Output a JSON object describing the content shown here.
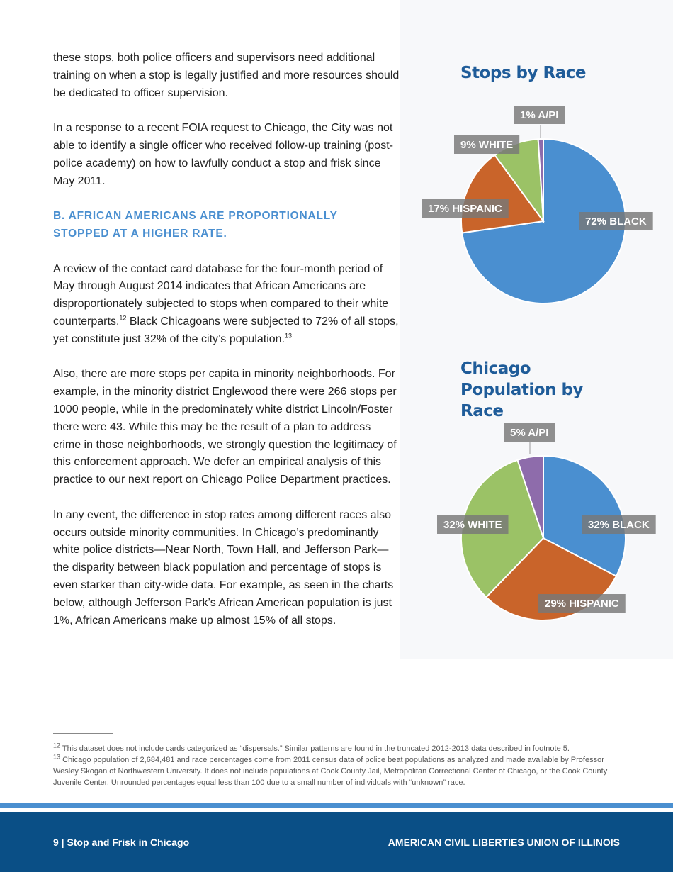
{
  "paragraphs": [
    {
      "text": "these stops, both police officers and supervisors need additional training on when a stop is legally justified and more resources should be dedicated to officer supervision."
    },
    {
      "text": "In a response to a recent FOIA request to Chicago, the City was not able to identify a single officer who received follow-up training (post-police academy) on how to lawfully conduct a stop and frisk since May 2011."
    }
  ],
  "heading": "B. AFRICAN AMERICANS ARE PROPORTIONALLY STOPPED AT A HIGHER RATE.",
  "review": {
    "text": "A review of the contact card database for the four-month period of May through August 2014 indicates that African Americans are disproportionately subjected to stops when compared to their white counterparts.",
    "note": "12",
    "text2": " Black Chicagoans were subjected to 72% of all stops, yet constitute just 32% of the city’s population.",
    "note2": "13"
  },
  "paragraphs2": [
    {
      "text": "Also, there are more stops per capita in minority neighborhoods.  For example, in the minority district Englewood there were 266 stops per 1000 people, while in the predominately white district Lincoln/Foster there were 43.  While this may be the result of a plan to address crime in those neighborhoods, we strongly question the legitimacy of this enforcement approach.  We defer an empirical analysis of this practice to our next report on Chicago Police Department practices."
    },
    {
      "text": "In any event, the difference in stop rates among different races also occurs outside minority communities.  In Chicago’s predominantly white police districts—Near North, Town Hall, and Jefferson Park—the disparity between black population and percentage of stops is even starker than city-wide data. For example, as seen in the charts below, although Jefferson Park’s African American population is just 1%, African Americans make up almost 15% of all stops."
    }
  ],
  "footnotes": [
    {
      "mark": "12",
      "text": "This dataset does not include cards categorized as “dispersals.” Similar patterns are found in the truncated 2012-2013 data described in footnote 5."
    },
    {
      "mark": "13",
      "text": "Chicago population of 2,684,481 and race percentages come from 2011 census data of police beat populations as analyzed and made available by Professor Wesley Skogan of Northwestern University. It does not include populations at Cook County Jail, Metropolitan Correctional Center of Chicago, or the Cook County Juvenile Center. Unrounded percentages equal less than 100 due to a small number of individuals with “unknown” race."
    }
  ],
  "footer": {
    "left": "9  |  Stop and Frisk in Chicago",
    "right": "AMERICAN CIVIL LIBERTIES UNION OF ILLINOIS"
  },
  "chart_data": [
    {
      "type": "pie",
      "title": "Stops by Race",
      "values": [
        72,
        17,
        9,
        1
      ],
      "value_labels": [
        "72% BLACK",
        "17% HISPANIC",
        "9% WHITE",
        "1% A/PI"
      ],
      "colors": [
        "#4a8fd0",
        "#c9642a",
        "#9bc266",
        "#8e6cab"
      ]
    },
    {
      "type": "pie",
      "title": "Chicago Population by Race",
      "values": [
        32,
        29,
        32,
        5
      ],
      "value_labels": [
        "32% BLACK",
        "29% HISPANIC",
        "32% WHITE",
        "5% A/PI"
      ],
      "colors": [
        "#4a8fd0",
        "#c9642a",
        "#9bc266",
        "#8e6cab"
      ]
    }
  ]
}
